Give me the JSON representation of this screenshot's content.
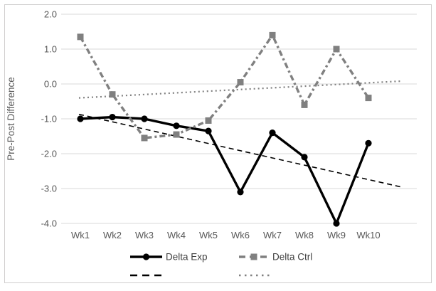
{
  "chart_data": {
    "type": "line",
    "title": "",
    "ylabel": "Pre-Post Difference",
    "xlabel": "",
    "categories": [
      "Wk1",
      "Wk2",
      "Wk3",
      "Wk4",
      "Wk5",
      "Wk6",
      "Wk7",
      "Wk8",
      "Wk9",
      "Wk10"
    ],
    "series": [
      {
        "name": "Delta Exp",
        "color": "#000000",
        "marker": "circle",
        "line_style": "solid",
        "values": [
          -1.0,
          -0.95,
          -1.0,
          -1.2,
          -1.35,
          -3.1,
          -1.4,
          -2.1,
          -4.0,
          -1.7
        ]
      },
      {
        "name": "Delta Ctrl",
        "color": "#808080",
        "marker": "square",
        "line_style": "dash-dot",
        "values": [
          1.35,
          -0.3,
          -1.55,
          -1.45,
          -1.05,
          0.05,
          1.4,
          -0.6,
          1.0,
          -0.4
        ]
      }
    ],
    "trendlines": [
      {
        "series": "Delta Exp",
        "color": "#000000",
        "style": "dashed",
        "start_value": -0.87,
        "end_value": -2.95
      },
      {
        "series": "Delta Ctrl",
        "color": "#808080",
        "style": "dotted",
        "start_value": -0.4,
        "end_value": 0.08
      }
    ],
    "yticks": [
      2,
      1,
      0,
      -1,
      -2,
      -3,
      -4
    ],
    "ytick_labels": [
      "2.0",
      "1.0",
      "0.0",
      "-1.0",
      "-2.0",
      "-3.0",
      "-4.0"
    ],
    "ylim": [
      -4,
      2
    ],
    "grid": "horizontal",
    "legend_position": "bottom",
    "colors": {
      "axis_text": "#595959",
      "legend_text": "#404040",
      "gridline": "#d9d9d9",
      "chart_border": "#d0cece",
      "background": "#ffffff"
    }
  }
}
